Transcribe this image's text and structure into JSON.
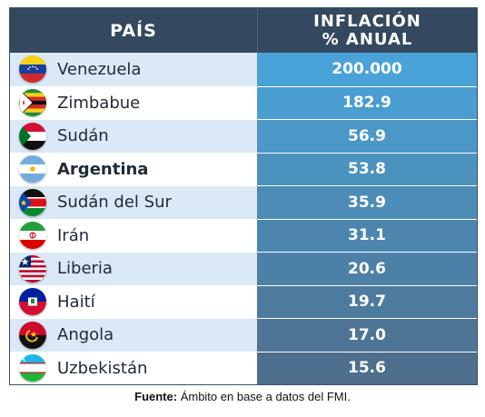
{
  "chart_data": {
    "type": "table",
    "columns": [
      "PAÍS",
      "INFLACIÓN % ANUAL"
    ],
    "header": {
      "country": "PAÍS",
      "inflation_line1": "INFLACIÓN",
      "inflation_line2": "% ANUAL"
    },
    "rows": [
      {
        "country": "Venezuela",
        "value": "200.000",
        "flag": "venezuela-flag-icon",
        "highlight": false
      },
      {
        "country": "Zimbabue",
        "value": "182.9",
        "flag": "zimbabwe-flag-icon",
        "highlight": false
      },
      {
        "country": "Sudán",
        "value": "56.9",
        "flag": "sudan-flag-icon",
        "highlight": false
      },
      {
        "country": "Argentina",
        "value": "53.8",
        "flag": "argentina-flag-icon",
        "highlight": true
      },
      {
        "country": "Sudán del Sur",
        "value": "35.9",
        "flag": "south-sudan-flag-icon",
        "highlight": false
      },
      {
        "country": "Irán",
        "value": "31.1",
        "flag": "iran-flag-icon",
        "highlight": false
      },
      {
        "country": "Liberia",
        "value": "20.6",
        "flag": "liberia-flag-icon",
        "highlight": false
      },
      {
        "country": "Haití",
        "value": "19.7",
        "flag": "haiti-flag-icon",
        "highlight": false
      },
      {
        "country": "Angola",
        "value": "17.0",
        "flag": "angola-flag-icon",
        "highlight": false
      },
      {
        "country": "Uzbekistán",
        "value": "15.6",
        "flag": "uzbekistan-flag-icon",
        "highlight": false
      }
    ],
    "colors": {
      "header": "#34495f",
      "row_light": "#dbe9f6",
      "row_white": "#ffffff",
      "value_top": "#4aa3d8",
      "value_bottom": "#4e6f8e"
    }
  },
  "footnote": {
    "label": "Fuente:",
    "text": " Ámbito en base a datos del FMI."
  }
}
